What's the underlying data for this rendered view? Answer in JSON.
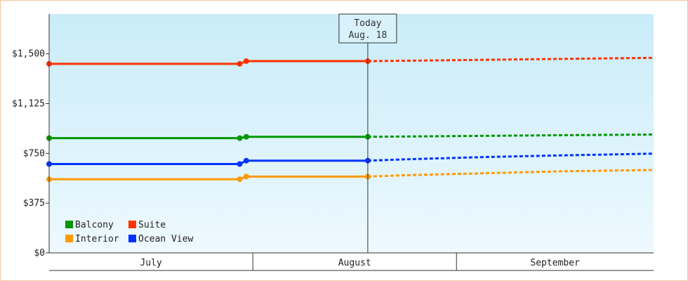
{
  "chart_data": {
    "type": "line",
    "title": "",
    "xlabel": "",
    "ylabel": "",
    "ylim": [
      0,
      1800
    ],
    "yticks": [
      {
        "value": 0,
        "label": "$0"
      },
      {
        "value": 375,
        "label": "$375"
      },
      {
        "value": 750,
        "label": "$750"
      },
      {
        "value": 1125,
        "label": "$1,125"
      },
      {
        "value": 1500,
        "label": "$1,500"
      }
    ],
    "xlim": [
      "Jul 1",
      "Sep 30"
    ],
    "months": [
      {
        "label": "July",
        "start_day": 0,
        "end_day": 31
      },
      {
        "label": "August",
        "start_day": 31,
        "end_day": 62
      },
      {
        "label": "September",
        "start_day": 62,
        "end_day": 92
      }
    ],
    "today": {
      "line1": "Today",
      "line2": "Aug. 18",
      "day": 48.5
    },
    "grid": false,
    "legend_position": "bottom-left",
    "series": [
      {
        "name": "Suite",
        "color": "#ff3300",
        "actual": [
          [
            0,
            1425
          ],
          [
            29,
            1425
          ],
          [
            30,
            1445
          ],
          [
            48.5,
            1445
          ]
        ],
        "markers": [
          [
            0,
            1425
          ],
          [
            29,
            1425
          ],
          [
            30,
            1445
          ],
          [
            48.5,
            1445
          ]
        ],
        "forecast": [
          [
            48.5,
            1445
          ],
          [
            54,
            1448
          ],
          [
            66,
            1455
          ],
          [
            78,
            1462
          ],
          [
            92,
            1470
          ]
        ]
      },
      {
        "name": "Balcony",
        "color": "#009900",
        "actual": [
          [
            0,
            865
          ],
          [
            29,
            865
          ],
          [
            30,
            875
          ],
          [
            48.5,
            875
          ]
        ],
        "markers": [
          [
            0,
            865
          ],
          [
            29,
            865
          ],
          [
            30,
            875
          ],
          [
            48.5,
            875
          ]
        ],
        "forecast": [
          [
            48.5,
            875
          ],
          [
            54,
            877
          ],
          [
            66,
            882
          ],
          [
            78,
            887
          ],
          [
            92,
            892
          ]
        ]
      },
      {
        "name": "Ocean View",
        "color": "#0033ff",
        "actual": [
          [
            0,
            670
          ],
          [
            29,
            670
          ],
          [
            30,
            695
          ],
          [
            48.5,
            695
          ]
        ],
        "markers": [
          [
            0,
            670
          ],
          [
            29,
            670
          ],
          [
            30,
            695
          ],
          [
            48.5,
            695
          ]
        ],
        "forecast": [
          [
            48.5,
            695
          ],
          [
            54,
            705
          ],
          [
            66,
            722
          ],
          [
            78,
            735
          ],
          [
            92,
            748
          ]
        ]
      },
      {
        "name": "Interior",
        "color": "#ff9900",
        "actual": [
          [
            0,
            555
          ],
          [
            29,
            555
          ],
          [
            30,
            575
          ],
          [
            48.5,
            575
          ]
        ],
        "markers": [
          [
            0,
            555
          ],
          [
            29,
            555
          ],
          [
            30,
            575
          ],
          [
            48.5,
            575
          ]
        ],
        "forecast": [
          [
            48.5,
            575
          ],
          [
            54,
            585
          ],
          [
            66,
            600
          ],
          [
            78,
            615
          ],
          [
            92,
            625
          ]
        ]
      }
    ],
    "legend": [
      {
        "name": "Balcony",
        "color": "#009900"
      },
      {
        "name": "Suite",
        "color": "#ff3300"
      },
      {
        "name": "Interior",
        "color": "#ff9900"
      },
      {
        "name": "Ocean View",
        "color": "#0033ff"
      }
    ]
  }
}
